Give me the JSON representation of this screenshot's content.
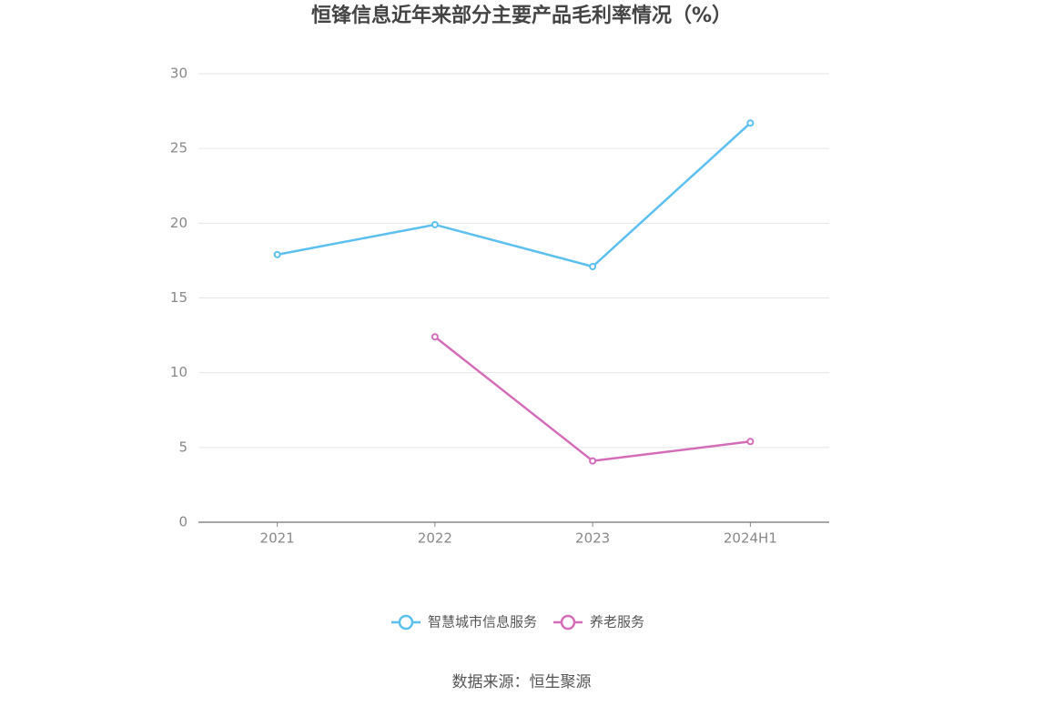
{
  "chart_data": {
    "type": "line",
    "title": "恒锋信息近年来部分主要产品毛利率情况（%）",
    "categories": [
      "2021",
      "2022",
      "2023",
      "2024H1"
    ],
    "series": [
      {
        "name": "智慧城市信息服务",
        "color": "#5bc0f0",
        "values": [
          17.9,
          19.9,
          17.1,
          26.7
        ]
      },
      {
        "name": "养老服务",
        "color": "#d46db8",
        "values": [
          null,
          12.4,
          4.1,
          5.4
        ]
      }
    ],
    "ylim": [
      0,
      30
    ],
    "yticks": [
      0,
      5,
      10,
      15,
      20,
      25,
      30
    ],
    "grid": true,
    "source": "数据来源：恒生聚源"
  }
}
